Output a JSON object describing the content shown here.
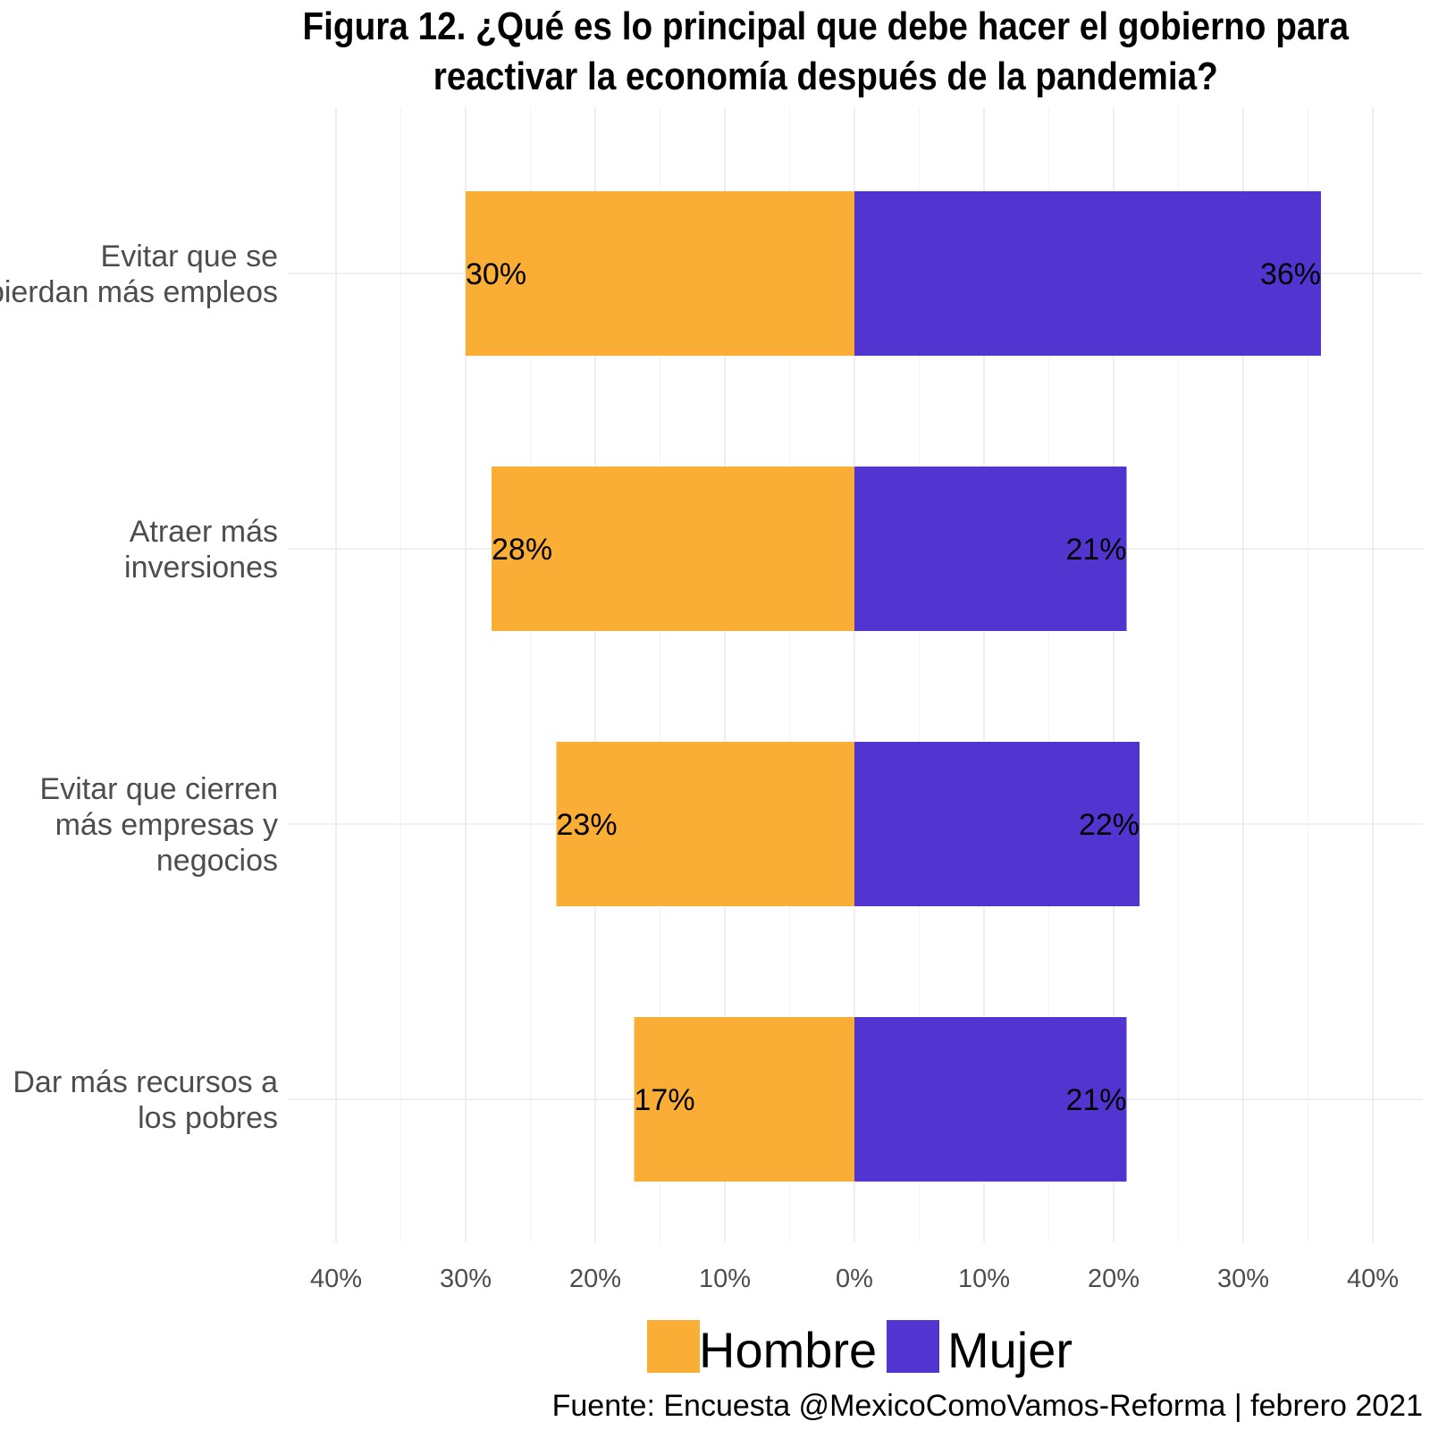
{
  "chart_data": {
    "type": "bar",
    "title_lines": [
      "Figura 12. ¿Qué es lo principal que debe hacer el gobierno para",
      "reactivar la economía después de la pandemia?"
    ],
    "categories": [
      [
        "Evitar que se",
        "pierdan más empleos"
      ],
      [
        "Atraer más",
        "inversiones"
      ],
      [
        "Evitar que cierren",
        "más empresas y",
        "negocios"
      ],
      [
        "Dar más recursos a",
        "los pobres"
      ]
    ],
    "series": [
      {
        "name": "Hombre",
        "color": "#FBAE35",
        "values": [
          30,
          28,
          23,
          17
        ],
        "labels": [
          "30%",
          "28%",
          "23%",
          "17%"
        ],
        "direction": "left"
      },
      {
        "name": "Mujer",
        "color": "#5235D1",
        "values": [
          36,
          21,
          22,
          21
        ],
        "labels": [
          "36%",
          "21%",
          "22%",
          "21%"
        ],
        "direction": "right"
      }
    ],
    "xlim": [
      -40,
      40
    ],
    "x_ticks": [
      -40,
      -30,
      -20,
      -10,
      0,
      10,
      20,
      30,
      40
    ],
    "x_tick_labels": [
      "40%",
      "30%",
      "20%",
      "10%",
      "0%",
      "10%",
      "20%",
      "30%",
      "40%"
    ],
    "grid": true,
    "legend_position": "bottom",
    "caption": "Fuente: Encuesta @MexicoComoVamos-Reforma | febrero 2021"
  }
}
